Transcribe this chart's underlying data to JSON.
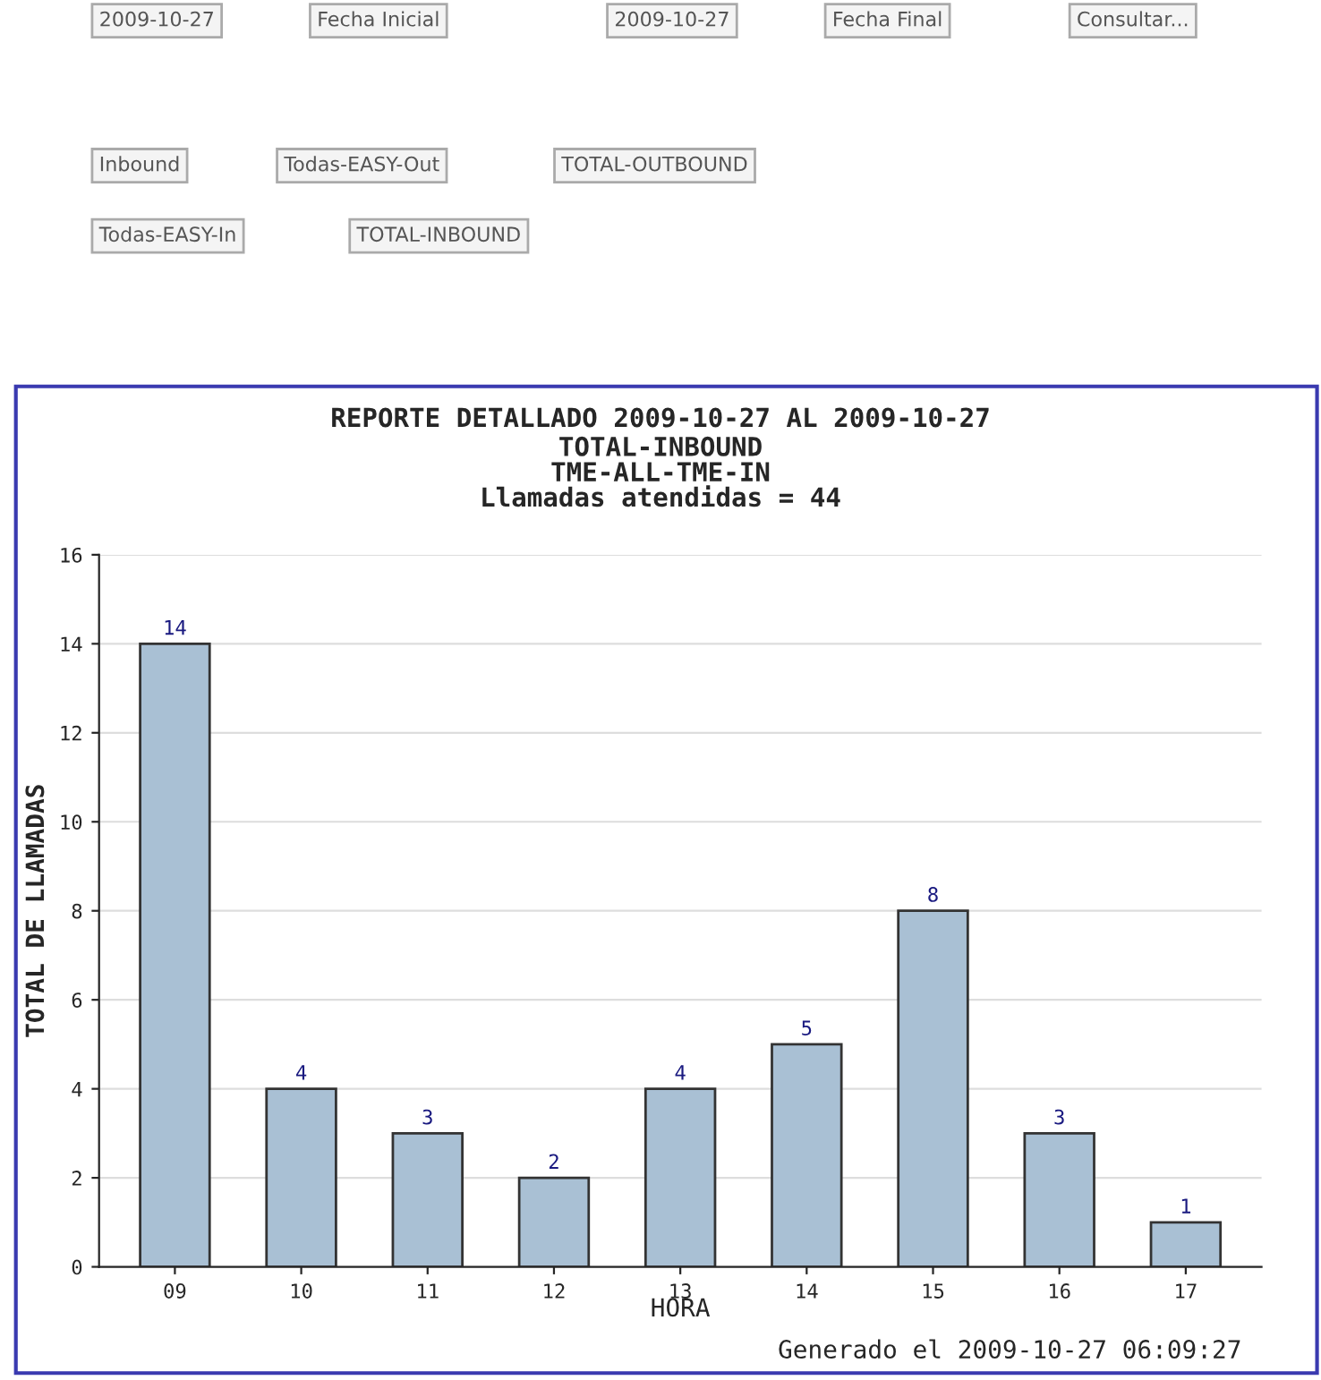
{
  "chart_data": {
    "type": "bar",
    "title": "REPORTE DETALLADO 2009-10-27 AL 2009-10-27",
    "subtitle": "TOTAL-INBOUND\nTME-ALL-TME-IN\nLlamadas atendidas = 44",
    "xlabel": "HORA",
    "ylabel": "TOTAL DE LLAMADAS",
    "categories": [
      "09",
      "10",
      "11",
      "12",
      "13",
      "14",
      "15",
      "16",
      "17"
    ],
    "values": [
      14,
      4,
      3,
      2,
      4,
      5,
      8,
      3,
      1
    ],
    "color": "#a9c0d4",
    "ylim": [
      0,
      16
    ],
    "yticks": [
      0,
      2,
      4,
      6,
      8,
      10,
      12,
      14,
      16
    ],
    "grid": "y",
    "data_labels": true,
    "annotations": [
      "2009-10-27",
      "Fecha Inicial",
      "2009-10-27",
      "Fecha Final",
      "Consultar...",
      "Inbound",
      "Todas-EASY-Out",
      "TOTAL-OUTBOUND",
      "Todas-EASY-In",
      "TOTAL-INBOUND",
      "Generado el 2009-10-27 06:09:27"
    ]
  }
}
